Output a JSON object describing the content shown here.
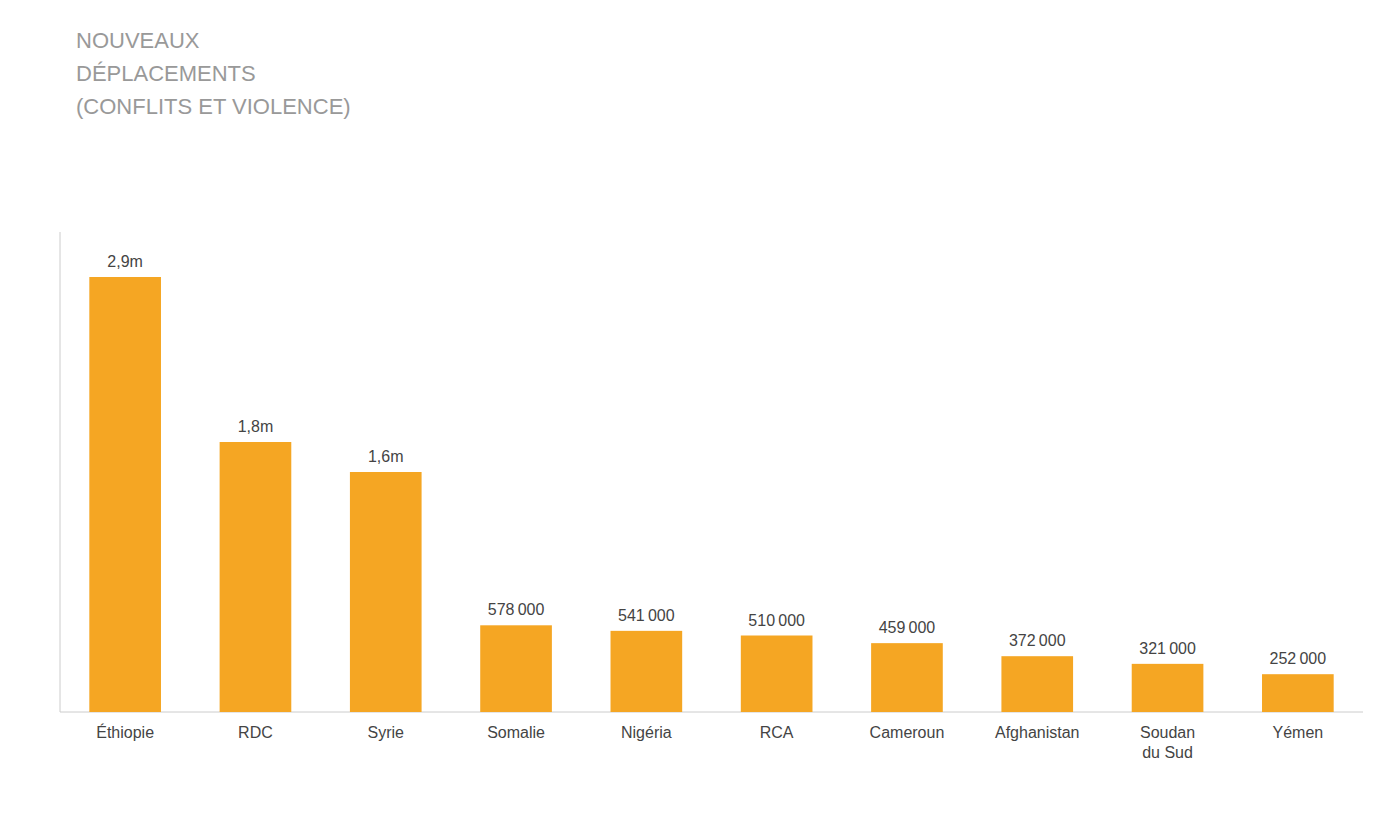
{
  "chart_data": {
    "type": "bar",
    "title": "NOUVEAUX\nDÉPLACEMENTS\n(CONFLITS ET VIOLENCE)",
    "categories": [
      "Éthiopie",
      "RDC",
      "Syrie",
      "Somalie",
      "Nigéria",
      "RCA",
      "Cameroun",
      "Afghanistan",
      "Soudan\ndu Sud",
      "Yémen"
    ],
    "values": [
      2900000,
      1800000,
      1600000,
      578000,
      541000,
      510000,
      459000,
      372000,
      321000,
      252000
    ],
    "value_labels": [
      "2,9m",
      "1,8m",
      "1,6m",
      "578 000",
      "541 000",
      "510 000",
      "459 000",
      "372 000",
      "321 000",
      "252 000"
    ],
    "color": "#F5A623",
    "ylim": [
      0,
      3200000
    ],
    "tick_labels": "x"
  }
}
